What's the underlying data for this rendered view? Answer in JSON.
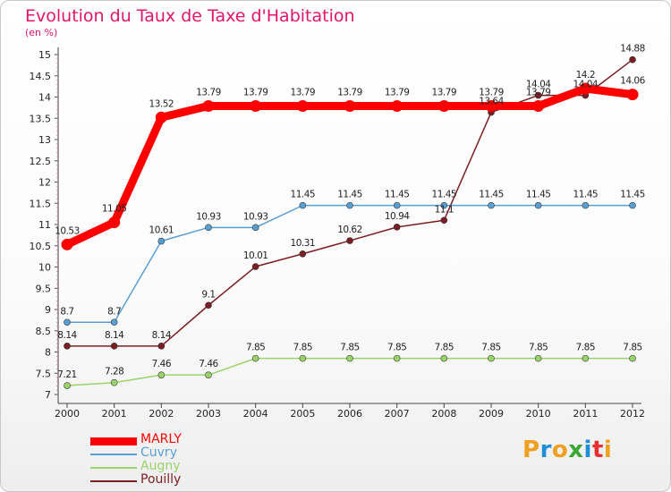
{
  "chart_data": {
    "type": "line",
    "title": "Evolution du Taux de Taxe d'Habitation",
    "subtitle": "(en %)",
    "x": [
      "2000",
      "2001",
      "2002",
      "2003",
      "2004",
      "2005",
      "2006",
      "2007",
      "2008",
      "2009",
      "2010",
      "2011",
      "2012"
    ],
    "ylim": [
      7,
      15
    ],
    "yticks": [
      "7",
      "7.5",
      "8",
      "8.5",
      "9",
      "9.5",
      "10",
      "10.5",
      "11",
      "11.5",
      "12",
      "12.5",
      "13",
      "13.5",
      "14",
      "14.5",
      "15"
    ],
    "grid": false,
    "legend_position": "bottom-left",
    "series": [
      {
        "name": "MARLY",
        "color": "#ff0000",
        "values": [
          10.53,
          11.05,
          13.52,
          13.79,
          13.79,
          13.79,
          13.79,
          13.79,
          13.79,
          13.79,
          13.79,
          14.2,
          14.06
        ],
        "labels": [
          "10.53",
          "11.05",
          "13.52",
          "13.79",
          "13.79",
          "13.79",
          "13.79",
          "13.79",
          "13.79",
          "13.79",
          "13.79",
          "14.2",
          "14.06"
        ]
      },
      {
        "name": "Cuvry",
        "color": "#5a9fd4",
        "values": [
          8.7,
          8.7,
          10.61,
          10.93,
          10.93,
          11.45,
          11.45,
          11.45,
          11.45,
          11.45,
          11.45,
          11.45,
          11.45
        ],
        "labels": [
          "8.7",
          "8.7",
          "10.61",
          "10.93",
          "10.93",
          "11.45",
          "11.45",
          "11.45",
          "11.45",
          "11.45",
          "11.45",
          "11.45",
          "11.45"
        ]
      },
      {
        "name": "Augny",
        "color": "#9bd36b",
        "values": [
          7.21,
          7.28,
          7.46,
          7.46,
          7.85,
          7.85,
          7.85,
          7.85,
          7.85,
          7.85,
          7.85,
          7.85,
          7.85
        ],
        "labels": [
          "7.21",
          "7.28",
          "7.46",
          "7.46",
          "7.85",
          "7.85",
          "7.85",
          "7.85",
          "7.85",
          "7.85",
          "7.85",
          "7.85",
          "7.85"
        ]
      },
      {
        "name": "Pouilly",
        "color": "#7b1e24",
        "values": [
          8.14,
          8.14,
          8.14,
          9.1,
          10.01,
          10.31,
          10.62,
          10.94,
          11.1,
          13.64,
          14.04,
          14.04,
          14.88
        ],
        "labels": [
          "8.14",
          "8.14",
          "8.14",
          "9.1",
          "10.01",
          "10.31",
          "10.62",
          "10.94",
          "11.1",
          "13.64",
          "14.04",
          "14.04",
          "14.88"
        ]
      }
    ]
  },
  "branding": {
    "logo_letters": [
      "P",
      "r",
      "o",
      "x",
      "i",
      "t",
      "i"
    ],
    "logo_colors": [
      "#f0a020",
      "#1c8fd6",
      "#f0a020",
      "#3aa735",
      "#1c8fd6",
      "#e83030",
      "#f0a020"
    ]
  }
}
